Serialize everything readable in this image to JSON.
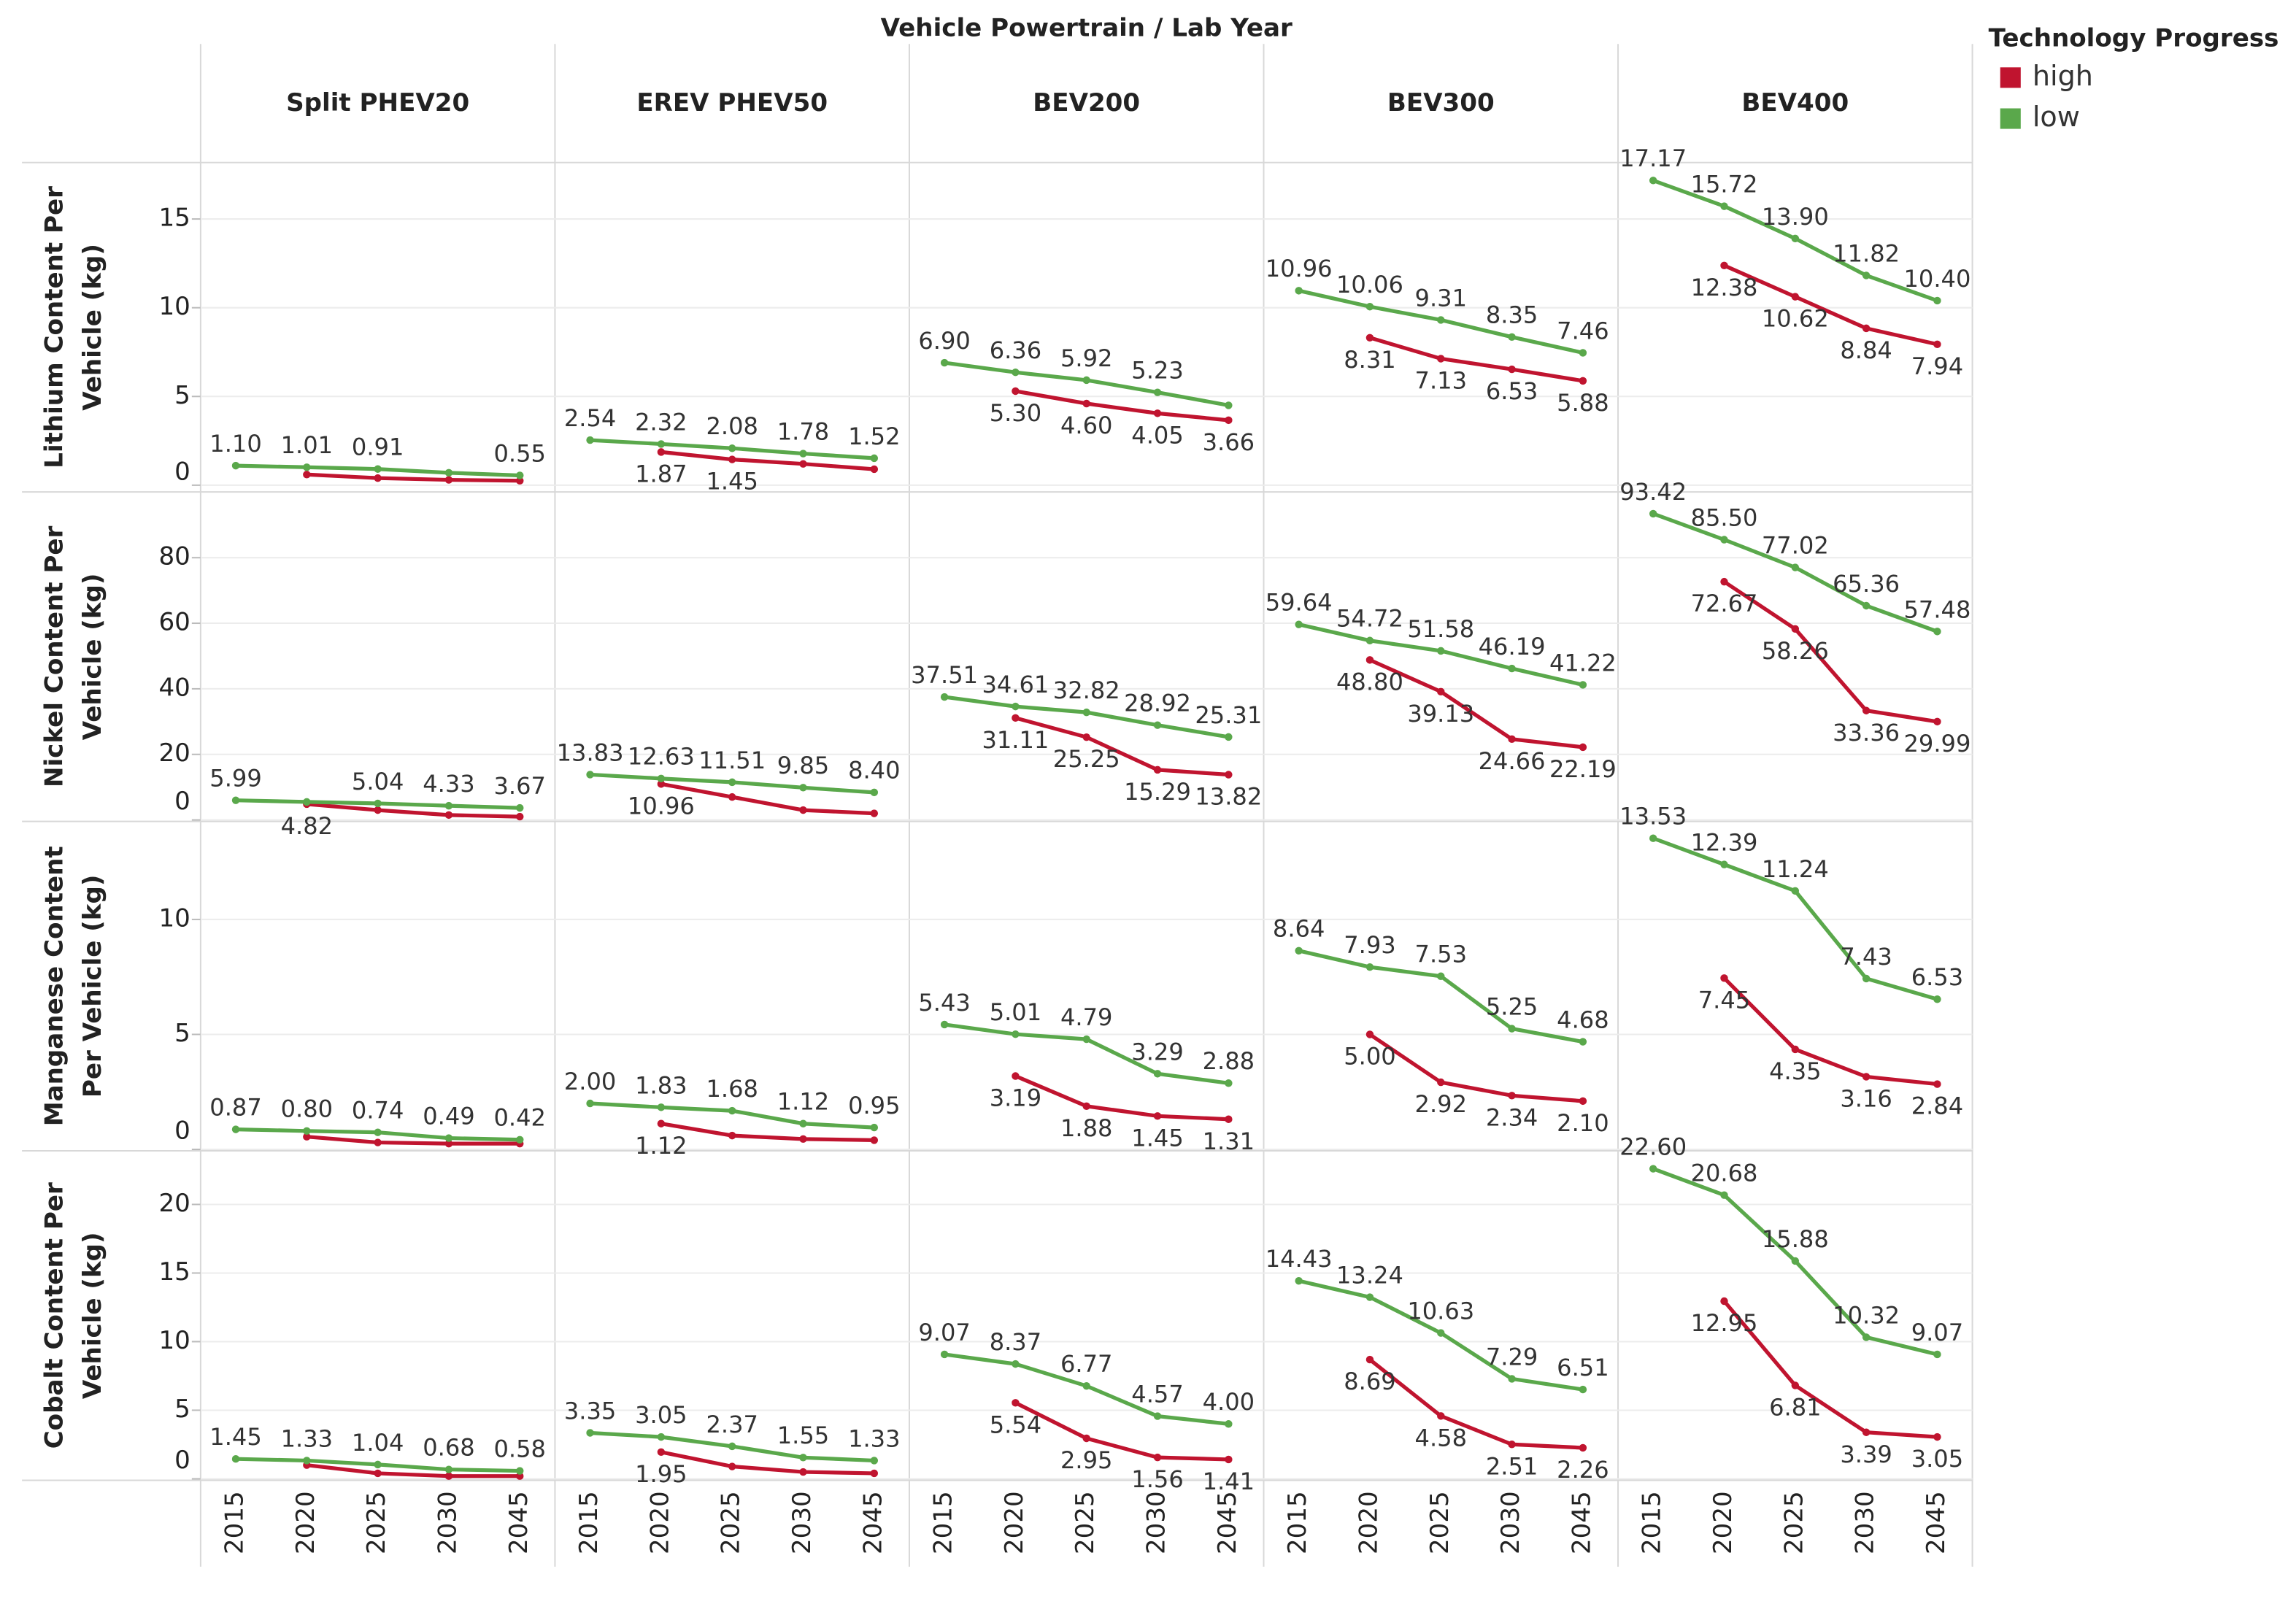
{
  "chart_data": {
    "type": "line",
    "title": "Vehicle Powertrain / Lab Year",
    "legend_title": "Technology Progress",
    "legend": [
      {
        "name": "high",
        "color": "#c0142f"
      },
      {
        "name": "low",
        "color": "#5aa84b"
      }
    ],
    "columns": [
      "Split PHEV20",
      "EREV PHEV50",
      "BEV200",
      "BEV300",
      "BEV400"
    ],
    "categories": [
      "2015",
      "2020",
      "2025",
      "2030",
      "2045"
    ],
    "grid": true,
    "rows": [
      {
        "label": [
          "Lithium Content Per",
          "Vehicle (kg)"
        ],
        "ylim": [
          -0.3,
          18.1
        ],
        "yticks": [
          0,
          5,
          10,
          15
        ],
        "panels": [
          {
            "series": [
              {
                "values": [
                  null,
                  0.6,
                  0.4,
                  0.3,
                  0.25
                ],
                "value_labels": [
                  null,
                  null,
                  null,
                  null,
                  null
                ]
              },
              {
                "values": [
                  1.1,
                  1.01,
                  0.91,
                  0.7,
                  0.55
                ],
                "value_labels": [
                  "1.10",
                  "1.01",
                  "0.91",
                  null,
                  "0.55"
                ]
              }
            ]
          },
          {
            "series": [
              {
                "values": [
                  null,
                  1.87,
                  1.45,
                  1.2,
                  0.9
                ],
                "value_labels": [
                  null,
                  "1.87",
                  "1.45",
                  null,
                  null
                ]
              },
              {
                "values": [
                  2.54,
                  2.32,
                  2.08,
                  1.78,
                  1.52
                ],
                "value_labels": [
                  "2.54",
                  "2.32",
                  "2.08",
                  "1.78",
                  "1.52"
                ]
              }
            ]
          },
          {
            "series": [
              {
                "values": [
                  null,
                  5.3,
                  4.6,
                  4.05,
                  3.66
                ],
                "value_labels": [
                  null,
                  "5.30",
                  "4.60",
                  "4.05",
                  "3.66"
                ]
              },
              {
                "values": [
                  6.9,
                  6.36,
                  5.92,
                  5.23,
                  4.5
                ],
                "value_labels": [
                  "6.90",
                  "6.36",
                  "5.92",
                  "5.23",
                  null
                ]
              }
            ]
          },
          {
            "series": [
              {
                "values": [
                  null,
                  8.31,
                  7.13,
                  6.53,
                  5.88
                ],
                "value_labels": [
                  null,
                  "8.31",
                  "7.13",
                  "6.53",
                  "5.88"
                ]
              },
              {
                "values": [
                  10.96,
                  10.06,
                  9.31,
                  8.35,
                  7.46
                ],
                "value_labels": [
                  "10.96",
                  "10.06",
                  "9.31",
                  "8.35",
                  "7.46"
                ]
              }
            ]
          },
          {
            "series": [
              {
                "values": [
                  null,
                  12.38,
                  10.62,
                  8.84,
                  7.94
                ],
                "value_labels": [
                  null,
                  "12.38",
                  "10.62",
                  "8.84",
                  "7.94"
                ]
              },
              {
                "values": [
                  17.17,
                  15.72,
                  13.9,
                  11.82,
                  10.4
                ],
                "value_labels": [
                  "17.17",
                  "15.72",
                  "13.90",
                  "11.82",
                  "10.40"
                ]
              }
            ]
          }
        ]
      },
      {
        "label": [
          "Nickel Content Per",
          "Vehicle (kg)"
        ],
        "ylim": [
          0,
          99.6
        ],
        "yticks": [
          0,
          20,
          40,
          60,
          80
        ],
        "panels": [
          {
            "series": [
              {
                "values": [
                  null,
                  4.82,
                  3,
                  1.5,
                  1
                ],
                "value_labels": [
                  null,
                  "4.82",
                  null,
                  null,
                  null
                ]
              },
              {
                "values": [
                  5.99,
                  5.5,
                  5.04,
                  4.33,
                  3.67
                ],
                "value_labels": [
                  "5.99",
                  null,
                  "5.04",
                  "4.33",
                  "3.67"
                ]
              }
            ]
          },
          {
            "series": [
              {
                "values": [
                  null,
                  10.96,
                  7,
                  3,
                  2
                ],
                "value_labels": [
                  null,
                  "10.96",
                  null,
                  null,
                  null
                ]
              },
              {
                "values": [
                  13.83,
                  12.63,
                  11.51,
                  9.85,
                  8.4
                ],
                "value_labels": [
                  "13.83",
                  "12.63",
                  "11.51",
                  "9.85",
                  "8.40"
                ]
              }
            ]
          },
          {
            "series": [
              {
                "values": [
                  null,
                  31.11,
                  25.25,
                  15.29,
                  13.82
                ],
                "value_labels": [
                  null,
                  "31.11",
                  "25.25",
                  "15.29",
                  "13.82"
                ]
              },
              {
                "values": [
                  37.51,
                  34.61,
                  32.82,
                  28.92,
                  25.31
                ],
                "value_labels": [
                  "37.51",
                  "34.61",
                  "32.82",
                  "28.92",
                  "25.31"
                ]
              }
            ]
          },
          {
            "series": [
              {
                "values": [
                  null,
                  48.8,
                  39.13,
                  24.66,
                  22.19
                ],
                "value_labels": [
                  null,
                  "48.80",
                  "39.13",
                  "24.66",
                  "22.19"
                ]
              },
              {
                "values": [
                  59.64,
                  54.72,
                  51.58,
                  46.19,
                  41.22
                ],
                "value_labels": [
                  "59.64",
                  "54.72",
                  "51.58",
                  "46.19",
                  "41.22"
                ]
              }
            ]
          },
          {
            "series": [
              {
                "values": [
                  null,
                  72.67,
                  58.26,
                  33.36,
                  29.99
                ],
                "value_labels": [
                  null,
                  "72.67",
                  "58.26",
                  "33.36",
                  "29.99"
                ]
              },
              {
                "values": [
                  93.42,
                  85.5,
                  77.02,
                  65.36,
                  57.48
                ],
                "value_labels": [
                  "93.42",
                  "85.50",
                  "77.02",
                  "65.36",
                  "57.48"
                ]
              }
            ]
          }
        ]
      },
      {
        "label": [
          "Manganese Content",
          "Per Vehicle (kg)"
        ],
        "ylim": [
          0,
          14.2
        ],
        "yticks": [
          0,
          5,
          10
        ],
        "panels": [
          {
            "series": [
              {
                "values": [
                  null,
                  0.55,
                  0.3,
                  0.25,
                  0.25
                ],
                "value_labels": [
                  null,
                  null,
                  null,
                  null,
                  null
                ]
              },
              {
                "values": [
                  0.87,
                  0.8,
                  0.74,
                  0.49,
                  0.42
                ],
                "value_labels": [
                  "0.87",
                  "0.80",
                  "0.74",
                  "0.49",
                  "0.42"
                ]
              }
            ]
          },
          {
            "series": [
              {
                "values": [
                  null,
                  1.12,
                  0.6,
                  0.45,
                  0.4
                ],
                "value_labels": [
                  null,
                  "1.12",
                  null,
                  null,
                  null
                ]
              },
              {
                "values": [
                  2,
                  1.83,
                  1.68,
                  1.12,
                  0.95
                ],
                "value_labels": [
                  "2.00",
                  "1.83",
                  "1.68",
                  "1.12",
                  "0.95"
                ]
              }
            ]
          },
          {
            "series": [
              {
                "values": [
                  null,
                  3.19,
                  1.88,
                  1.45,
                  1.31
                ],
                "value_labels": [
                  null,
                  "3.19",
                  "1.88",
                  "1.45",
                  "1.31"
                ]
              },
              {
                "values": [
                  5.43,
                  5.01,
                  4.79,
                  3.29,
                  2.88
                ],
                "value_labels": [
                  "5.43",
                  "5.01",
                  "4.79",
                  "3.29",
                  "2.88"
                ]
              }
            ]
          },
          {
            "series": [
              {
                "values": [
                  null,
                  5,
                  2.92,
                  2.34,
                  2.1
                ],
                "value_labels": [
                  null,
                  "5.00",
                  "2.92",
                  "2.34",
                  "2.10"
                ]
              },
              {
                "values": [
                  8.64,
                  7.93,
                  7.53,
                  5.25,
                  4.68
                ],
                "value_labels": [
                  "8.64",
                  "7.93",
                  "7.53",
                  "5.25",
                  "4.68"
                ]
              }
            ]
          },
          {
            "series": [
              {
                "values": [
                  null,
                  7.45,
                  4.35,
                  3.16,
                  2.84
                ],
                "value_labels": [
                  null,
                  "7.45",
                  "4.35",
                  "3.16",
                  "2.84"
                ]
              },
              {
                "values": [
                  13.53,
                  12.39,
                  11.24,
                  7.43,
                  6.53
                ],
                "value_labels": [
                  "13.53",
                  "12.39",
                  "11.24",
                  "7.43",
                  "6.53"
                ]
              }
            ]
          }
        ]
      },
      {
        "label": [
          "Cobalt Content Per",
          "Vehicle (kg)"
        ],
        "ylim": [
          0,
          23.8
        ],
        "yticks": [
          0,
          5,
          10,
          15,
          20
        ],
        "panels": [
          {
            "series": [
              {
                "values": [
                  null,
                  1,
                  0.4,
                  0.2,
                  0.2
                ],
                "value_labels": [
                  null,
                  null,
                  null,
                  null,
                  null
                ]
              },
              {
                "values": [
                  1.45,
                  1.33,
                  1.04,
                  0.68,
                  0.58
                ],
                "value_labels": [
                  "1.45",
                  "1.33",
                  "1.04",
                  "0.68",
                  "0.58"
                ]
              }
            ]
          },
          {
            "series": [
              {
                "values": [
                  null,
                  1.95,
                  0.9,
                  0.5,
                  0.4
                ],
                "value_labels": [
                  null,
                  "1.95",
                  null,
                  null,
                  null
                ]
              },
              {
                "values": [
                  3.35,
                  3.05,
                  2.37,
                  1.55,
                  1.33
                ],
                "value_labels": [
                  "3.35",
                  "3.05",
                  "2.37",
                  "1.55",
                  "1.33"
                ]
              }
            ]
          },
          {
            "series": [
              {
                "values": [
                  null,
                  5.54,
                  2.95,
                  1.56,
                  1.41
                ],
                "value_labels": [
                  null,
                  "5.54",
                  "2.95",
                  "1.56",
                  "1.41"
                ]
              },
              {
                "values": [
                  9.07,
                  8.37,
                  6.77,
                  4.57,
                  4
                ],
                "value_labels": [
                  "9.07",
                  "8.37",
                  "6.77",
                  "4.57",
                  "4.00"
                ]
              }
            ]
          },
          {
            "series": [
              {
                "values": [
                  null,
                  8.69,
                  4.58,
                  2.51,
                  2.26
                ],
                "value_labels": [
                  null,
                  "8.69",
                  "4.58",
                  "2.51",
                  "2.26"
                ]
              },
              {
                "values": [
                  14.43,
                  13.24,
                  10.63,
                  7.29,
                  6.51
                ],
                "value_labels": [
                  "14.43",
                  "13.24",
                  "10.63",
                  "7.29",
                  "6.51"
                ]
              }
            ]
          },
          {
            "series": [
              {
                "values": [
                  null,
                  12.95,
                  6.81,
                  3.39,
                  3.05
                ],
                "value_labels": [
                  null,
                  "12.95",
                  "6.81",
                  "3.39",
                  "3.05"
                ]
              },
              {
                "values": [
                  22.6,
                  20.68,
                  15.88,
                  10.32,
                  9.07
                ],
                "value_labels": [
                  "22.60",
                  "20.68",
                  "15.88",
                  "10.32",
                  "9.07"
                ]
              }
            ]
          }
        ]
      }
    ]
  }
}
